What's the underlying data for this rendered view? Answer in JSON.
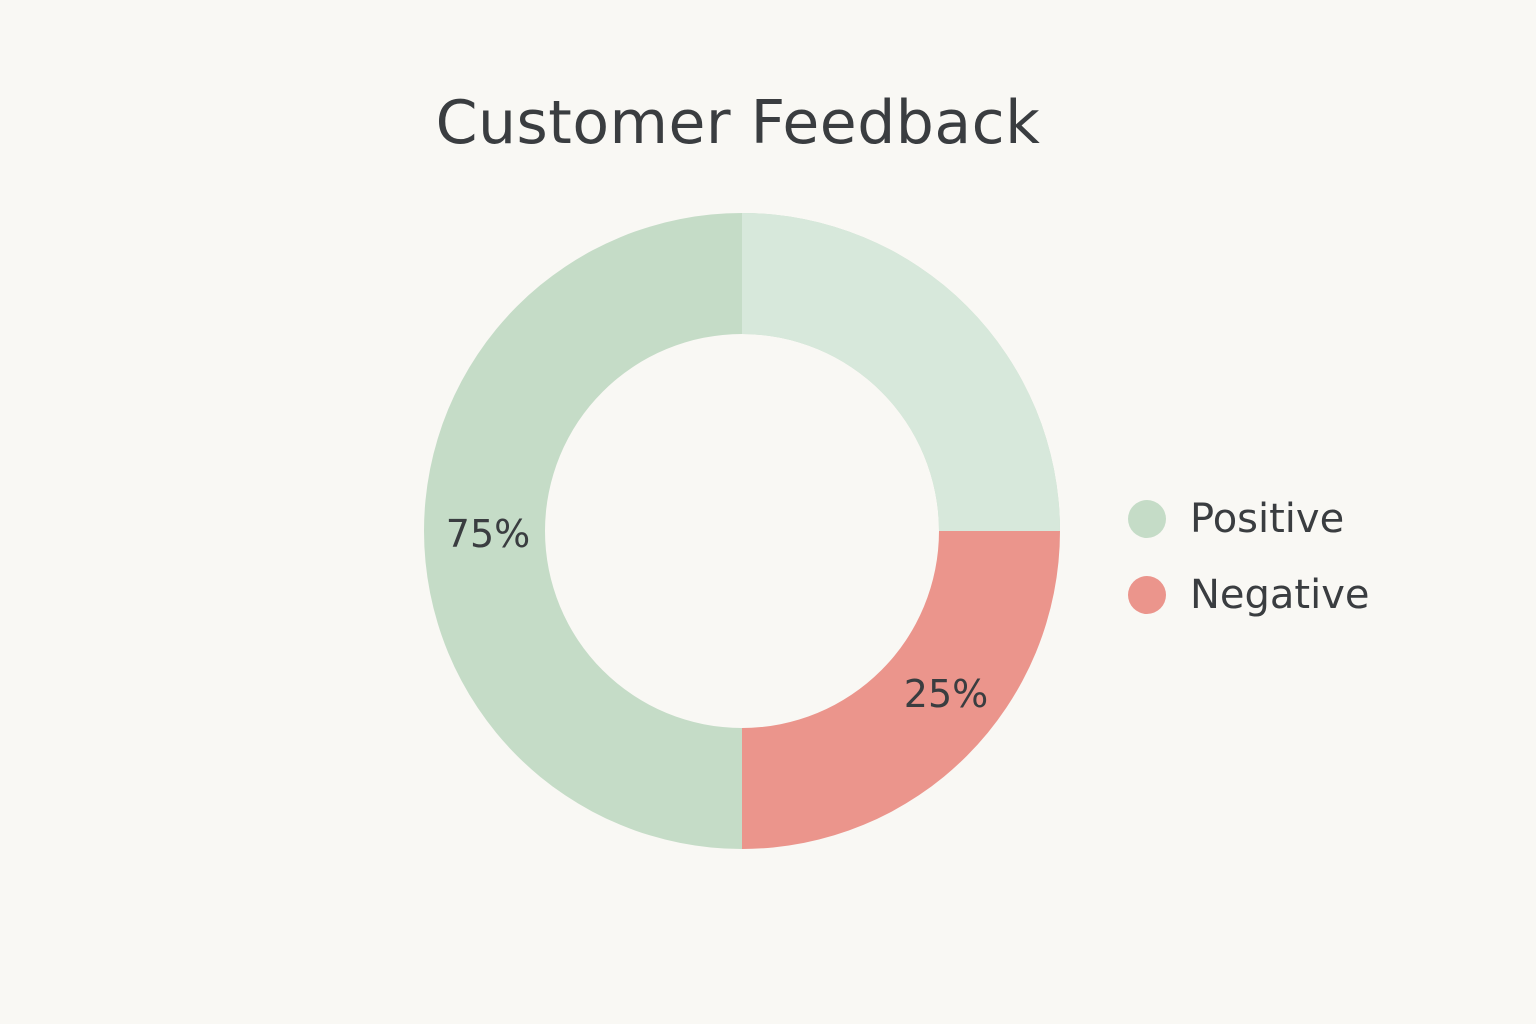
{
  "chart_data": {
    "type": "pie",
    "title": "Customer Feedback",
    "legend_position": "right",
    "slices": [
      {
        "name": "Positive",
        "value": 75,
        "label": "75%",
        "color": "#c5dcc7"
      },
      {
        "name": "Negative",
        "value": 25,
        "label": "25%",
        "color": "#eb958c"
      }
    ],
    "extra_colors": {
      "positive_upper_right_tint": "#d7e8db",
      "text": "#3a3d40",
      "background": "#f9f8f4"
    }
  }
}
